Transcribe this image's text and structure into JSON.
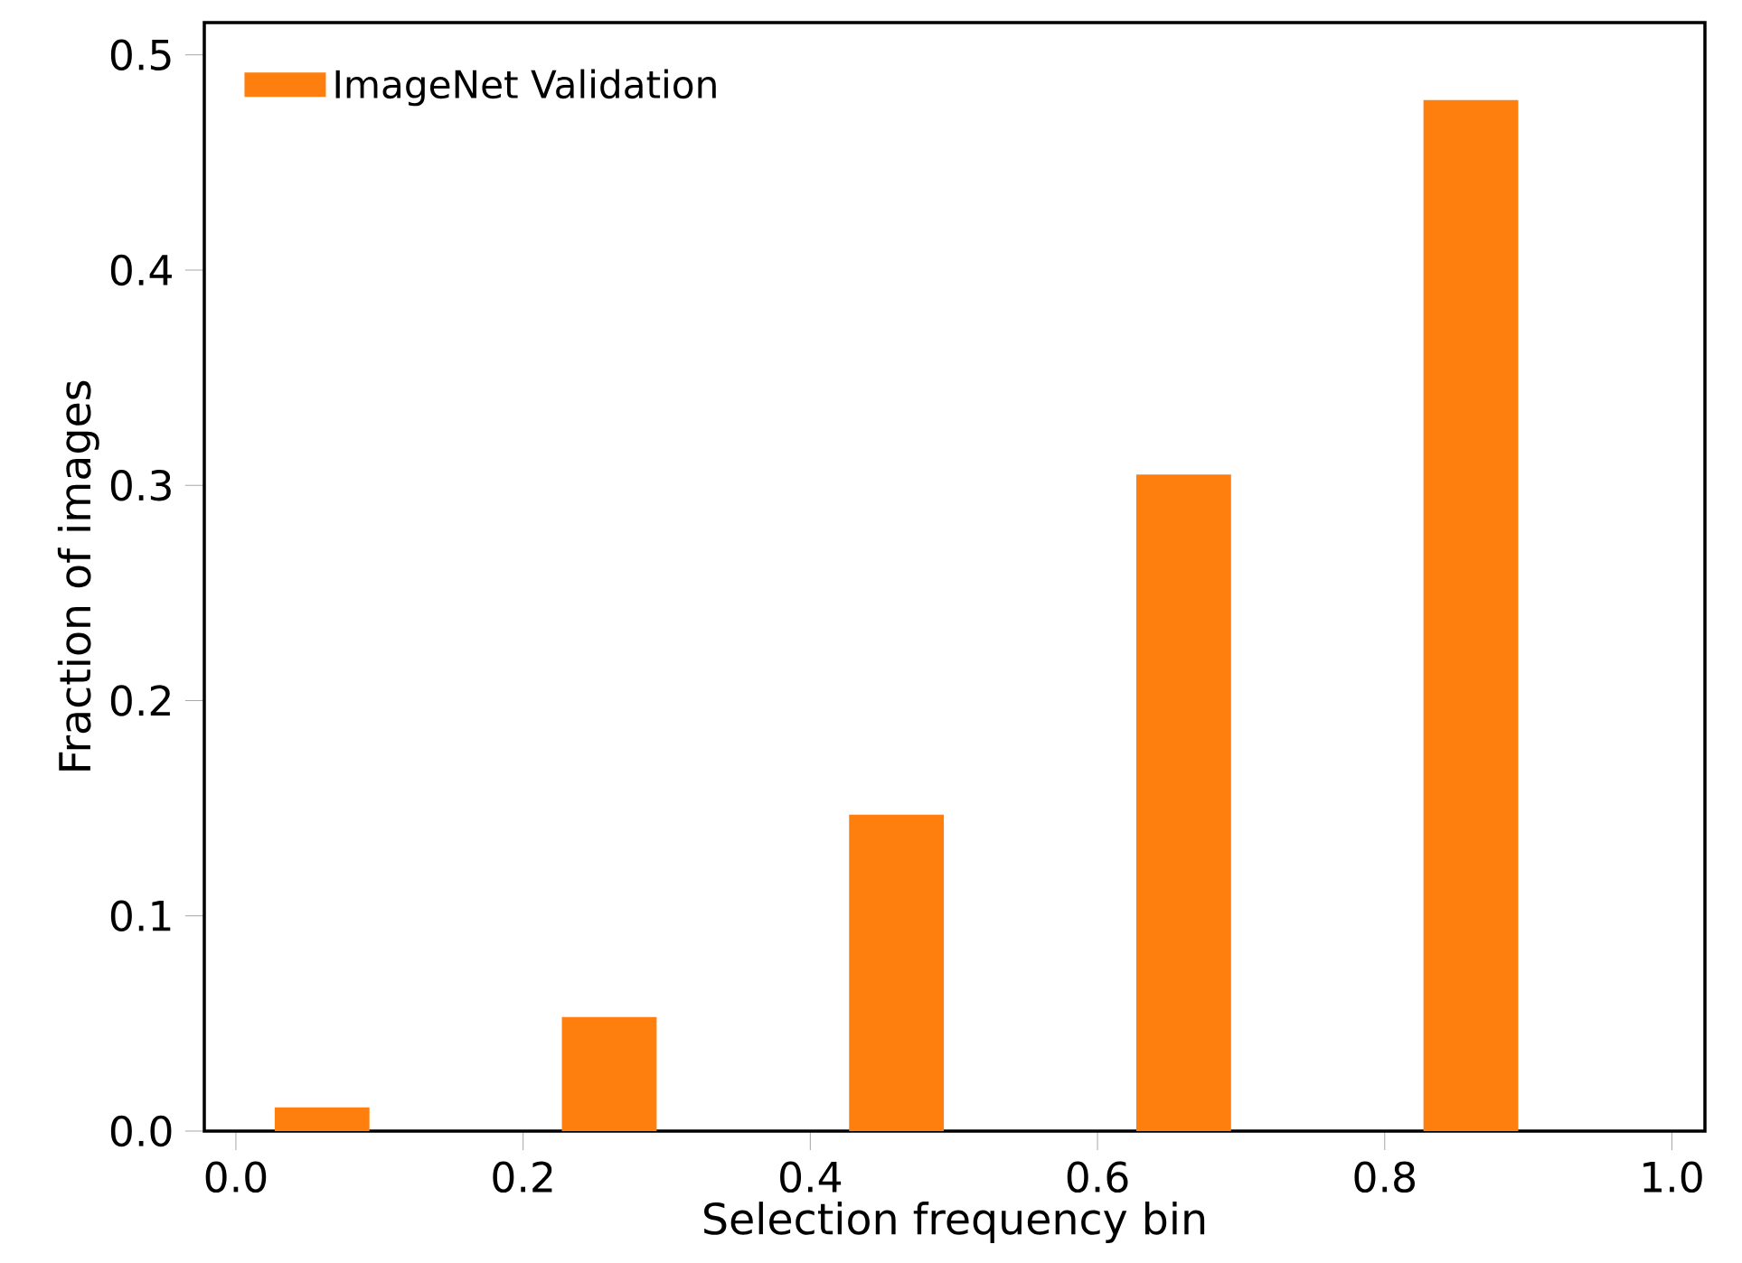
{
  "chart_data": {
    "type": "bar",
    "xlabel": "Selection frequency bin",
    "ylabel": "Fraction of images",
    "x": [
      0.06,
      0.26,
      0.46,
      0.66,
      0.86
    ],
    "series": [
      {
        "name": "ImageNet Validation",
        "color": "#ff7f0e",
        "values": [
          0.011,
          0.053,
          0.147,
          0.305,
          0.479
        ]
      }
    ],
    "xlim": [
      -0.022,
      1.023
    ],
    "ylim": [
      0,
      0.515
    ],
    "xticks": [
      {
        "value": 0,
        "label": "0.0"
      },
      {
        "value": 0.2,
        "label": "0.2"
      },
      {
        "value": 0.4,
        "label": "0.4"
      },
      {
        "value": 0.6,
        "label": "0.6"
      },
      {
        "value": 0.8,
        "label": "0.8"
      },
      {
        "value": 1.0,
        "label": "1.0"
      }
    ],
    "yticks": [
      {
        "value": 0,
        "label": "0.0"
      },
      {
        "value": 0.1,
        "label": "0.1"
      },
      {
        "value": 0.2,
        "label": "0.2"
      },
      {
        "value": 0.3,
        "label": "0.3"
      },
      {
        "value": 0.4,
        "label": "0.4"
      },
      {
        "value": 0.5,
        "label": "0.5"
      }
    ],
    "legend": "top left",
    "grid": false
  }
}
